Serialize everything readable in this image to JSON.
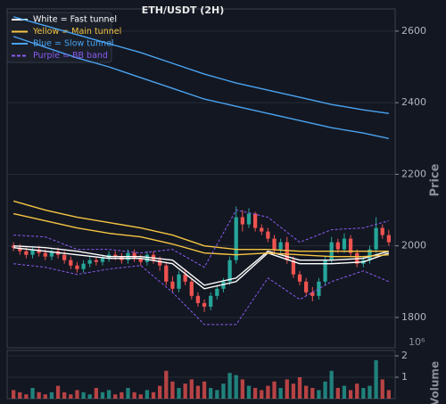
{
  "chart_data": [
    {
      "type": "candlestick",
      "title": "ETH/USDT (2H)",
      "y_label": "Price",
      "xlim": [
        -1,
        60
      ],
      "ylim": [
        1715,
        2662
      ],
      "yticks": [
        1800,
        2000,
        2200,
        2400,
        2600
      ],
      "grid": true,
      "up_color": "#26a69a",
      "down_color": "#ef5350",
      "legend": "upper left",
      "open": [
        2000,
        1995,
        1985,
        1975,
        1990,
        1980,
        1970,
        1985,
        1975,
        1960,
        1945,
        1935,
        1950,
        1960,
        1955,
        1965,
        1975,
        1970,
        1960,
        1980,
        1965,
        1955,
        1975,
        1960,
        1945,
        1900,
        1880,
        1920,
        1900,
        1860,
        1840,
        1830,
        1860,
        1880,
        1900,
        1960,
        2080,
        2060,
        2090,
        2050,
        2040,
        2020,
        1990,
        2010,
        1960,
        1920,
        1900,
        1870,
        1860,
        1900,
        1960,
        2010,
        1990,
        2020,
        1980,
        1950,
        1960,
        1990,
        2050,
        2030
      ],
      "high": [
        2010,
        2005,
        1995,
        1995,
        2000,
        1990,
        1990,
        1995,
        1985,
        1970,
        1955,
        1960,
        1970,
        1970,
        1975,
        1985,
        1985,
        1980,
        1990,
        1990,
        1975,
        1985,
        1985,
        1970,
        1955,
        1915,
        1930,
        1935,
        1910,
        1870,
        1850,
        1870,
        1890,
        1910,
        1970,
        2110,
        2100,
        2105,
        2095,
        2060,
        2050,
        2030,
        2020,
        2025,
        1970,
        1930,
        1910,
        1885,
        1910,
        1970,
        2025,
        2020,
        2035,
        2030,
        1990,
        1970,
        2000,
        2080,
        2060,
        2045
      ],
      "low": [
        1985,
        1975,
        1965,
        1965,
        1970,
        1960,
        1960,
        1965,
        1950,
        1935,
        1925,
        1925,
        1940,
        1945,
        1945,
        1955,
        1960,
        1950,
        1950,
        1955,
        1945,
        1945,
        1950,
        1930,
        1890,
        1870,
        1870,
        1890,
        1850,
        1830,
        1815,
        1820,
        1850,
        1870,
        1890,
        1950,
        2040,
        2050,
        2040,
        2030,
        2010,
        1980,
        1980,
        1950,
        1910,
        1890,
        1860,
        1845,
        1850,
        1890,
        1950,
        1980,
        1980,
        1970,
        1940,
        1940,
        1950,
        1980,
        2020,
        2000
      ],
      "close": [
        1995,
        1985,
        1975,
        1990,
        1980,
        1970,
        1985,
        1975,
        1960,
        1945,
        1935,
        1950,
        1960,
        1955,
        1965,
        1975,
        1970,
        1960,
        1980,
        1965,
        1955,
        1975,
        1960,
        1945,
        1900,
        1880,
        1920,
        1900,
        1860,
        1840,
        1830,
        1860,
        1880,
        1900,
        1960,
        2080,
        2060,
        2090,
        2050,
        2040,
        2020,
        1990,
        2010,
        1960,
        1920,
        1900,
        1870,
        1860,
        1900,
        1960,
        2010,
        1990,
        2020,
        1980,
        1950,
        1960,
        1990,
        2050,
        2030,
        2010
      ],
      "series": [
        {
          "name": "White = Fast tunnel",
          "color": "#ffffff",
          "dash": false,
          "x": [
            0,
            5,
            10,
            15,
            20,
            25,
            30,
            35,
            40,
            45,
            50,
            55,
            59
          ],
          "upper": [
            2000,
            1995,
            1985,
            1970,
            1970,
            1960,
            1890,
            1910,
            1985,
            1960,
            1960,
            1965,
            1985
          ],
          "lower": [
            1995,
            1985,
            1975,
            1965,
            1965,
            1950,
            1880,
            1900,
            1980,
            1950,
            1950,
            1955,
            1980
          ]
        },
        {
          "name": "Yellow = Main tunnel",
          "color": "#f5c542",
          "dash": false,
          "x": [
            0,
            5,
            10,
            15,
            20,
            25,
            30,
            35,
            40,
            45,
            50,
            55,
            59
          ],
          "upper": [
            2125,
            2100,
            2080,
            2065,
            2050,
            2030,
            2000,
            1990,
            1990,
            1985,
            1985,
            1985,
            1985
          ],
          "lower": [
            2090,
            2070,
            2050,
            2035,
            2025,
            2005,
            1980,
            1975,
            1980,
            1975,
            1970,
            1970,
            1975
          ]
        },
        {
          "name": "Blue = Slow tunnel",
          "color": "#4aa3f0",
          "dash": false,
          "x": [
            0,
            5,
            10,
            15,
            20,
            25,
            30,
            35,
            40,
            45,
            50,
            55,
            59
          ],
          "upper": [
            2640,
            2615,
            2590,
            2565,
            2540,
            2510,
            2480,
            2455,
            2435,
            2415,
            2395,
            2380,
            2370
          ],
          "lower": [
            2585,
            2555,
            2525,
            2500,
            2470,
            2440,
            2410,
            2390,
            2370,
            2350,
            2330,
            2315,
            2300
          ]
        },
        {
          "name": "Purple = BB band",
          "color": "#8a5cf0",
          "dash": true,
          "x": [
            0,
            5,
            10,
            15,
            20,
            25,
            30,
            35,
            40,
            45,
            50,
            55,
            59
          ],
          "upper": [
            2030,
            2025,
            1990,
            1990,
            1980,
            1990,
            1940,
            2100,
            2080,
            2010,
            2045,
            2050,
            2070
          ],
          "lower": [
            1950,
            1940,
            1920,
            1935,
            1945,
            1870,
            1780,
            1780,
            1910,
            1850,
            1900,
            1930,
            1900
          ]
        }
      ]
    },
    {
      "type": "bar",
      "y_label": "Volume",
      "offset_text": "10⁶",
      "ylim": [
        0,
        2.25
      ],
      "yticks": [
        1,
        2
      ],
      "values": [
        0.4,
        0.3,
        0.2,
        0.5,
        0.3,
        0.2,
        0.3,
        0.6,
        0.3,
        0.2,
        0.4,
        0.3,
        0.2,
        0.5,
        0.3,
        0.4,
        0.2,
        0.3,
        0.5,
        0.3,
        0.2,
        0.4,
        0.3,
        0.6,
        1.3,
        0.8,
        0.5,
        0.7,
        0.9,
        0.6,
        0.8,
        0.5,
        0.4,
        0.7,
        1.2,
        1.1,
        0.9,
        0.6,
        0.5,
        0.4,
        0.6,
        0.8,
        0.5,
        0.9,
        0.7,
        1.0,
        0.6,
        0.5,
        0.4,
        0.8,
        1.3,
        0.5,
        0.6,
        0.4,
        0.7,
        0.5,
        0.6,
        1.8,
        0.9,
        0.4
      ]
    }
  ]
}
